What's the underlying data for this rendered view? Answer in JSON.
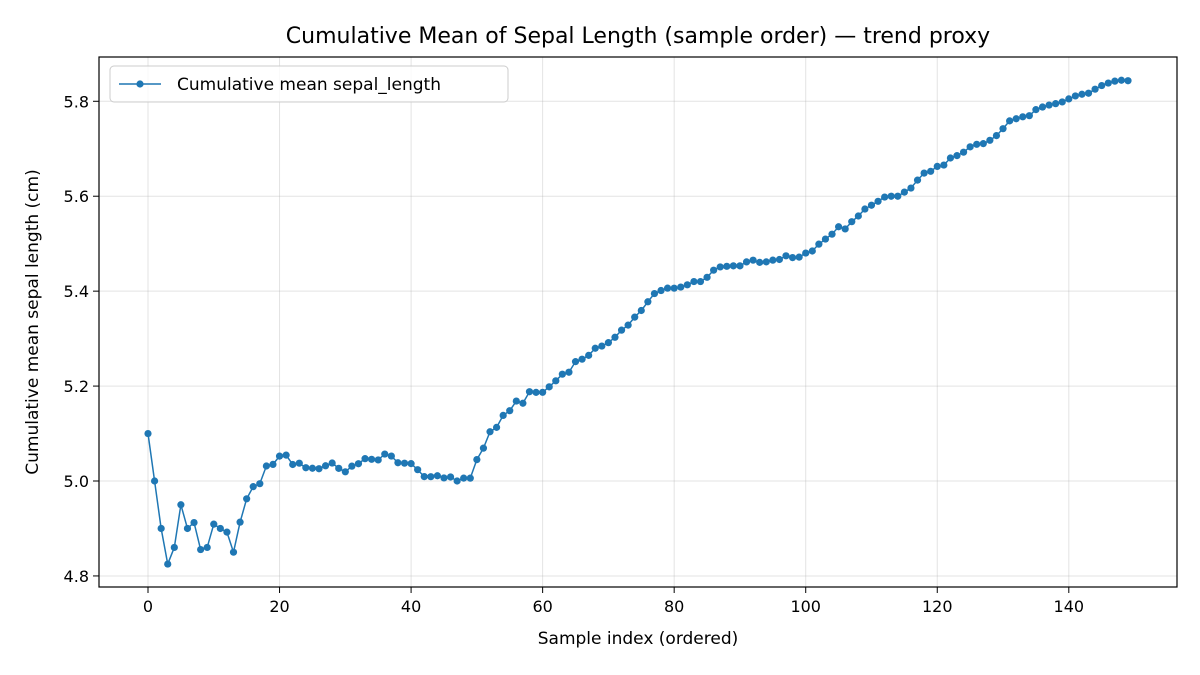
{
  "chart_data": {
    "type": "line",
    "title": "Cumulative Mean of Sepal Length (sample order) — trend proxy",
    "xlabel": "Sample index (ordered)",
    "ylabel": "Cumulative mean sepal length (cm)",
    "xlim": [
      -7.45,
      156.45
    ],
    "ylim": [
      4.7767,
      5.8933
    ],
    "xticks": [
      0,
      20,
      40,
      60,
      80,
      100,
      120,
      140
    ],
    "yticks": [
      4.8,
      5.0,
      5.2,
      5.4,
      5.6,
      5.8
    ],
    "xtick_labels": [
      "0",
      "20",
      "40",
      "60",
      "80",
      "100",
      "120",
      "140"
    ],
    "ytick_labels": [
      "4.8",
      "5.0",
      "5.2",
      "5.4",
      "5.6",
      "5.8"
    ],
    "grid": true,
    "legend_position": "upper left",
    "series": [
      {
        "name": "Cumulative mean sepal_length",
        "color": "#1f77b4",
        "marker": "circle",
        "x": [
          0,
          1,
          2,
          3,
          4,
          5,
          6,
          7,
          8,
          9,
          10,
          11,
          12,
          13,
          14,
          15,
          16,
          17,
          18,
          19,
          20,
          21,
          22,
          23,
          24,
          25,
          26,
          27,
          28,
          29,
          30,
          31,
          32,
          33,
          34,
          35,
          36,
          37,
          38,
          39,
          40,
          41,
          42,
          43,
          44,
          45,
          46,
          47,
          48,
          49,
          50,
          51,
          52,
          53,
          54,
          55,
          56,
          57,
          58,
          59,
          60,
          61,
          62,
          63,
          64,
          65,
          66,
          67,
          68,
          69,
          70,
          71,
          72,
          73,
          74,
          75,
          76,
          77,
          78,
          79,
          80,
          81,
          82,
          83,
          84,
          85,
          86,
          87,
          88,
          89,
          90,
          91,
          92,
          93,
          94,
          95,
          96,
          97,
          98,
          99,
          100,
          101,
          102,
          103,
          104,
          105,
          106,
          107,
          108,
          109,
          110,
          111,
          112,
          113,
          114,
          115,
          116,
          117,
          118,
          119,
          120,
          121,
          122,
          123,
          124,
          125,
          126,
          127,
          128,
          129,
          130,
          131,
          132,
          133,
          134,
          135,
          136,
          137,
          138,
          139,
          140,
          141,
          142,
          143,
          144,
          145,
          146,
          147,
          148,
          149
        ],
        "y": [
          5.1,
          5.0,
          4.9,
          4.825,
          4.86,
          4.95,
          4.9,
          4.9125,
          4.8556,
          4.86,
          4.9091,
          4.9,
          4.8923,
          4.85,
          4.9133,
          4.9625,
          4.9882,
          4.9944,
          5.0316,
          5.035,
          5.0524,
          5.0545,
          5.0348,
          5.0375,
          5.028,
          5.0269,
          5.0259,
          5.0321,
          5.0379,
          5.0267,
          5.0194,
          5.0313,
          5.0364,
          5.0471,
          5.0457,
          5.0444,
          5.0568,
          5.0526,
          5.0385,
          5.0375,
          5.0366,
          5.0238,
          5.0093,
          5.0091,
          5.0111,
          5.0065,
          5.0085,
          5.0,
          5.0061,
          5.006,
          5.0451,
          5.0692,
          5.1038,
          5.113,
          5.1382,
          5.1482,
          5.1684,
          5.1638,
          5.1881,
          5.1867,
          5.1869,
          5.1984,
          5.2111,
          5.225,
          5.2292,
          5.2515,
          5.2567,
          5.2647,
          5.2797,
          5.2843,
          5.2915,
          5.3028,
          5.3178,
          5.3284,
          5.3453,
          5.3592,
          5.3776,
          5.3949,
          5.4013,
          5.4063,
          5.4062,
          5.4086,
          5.4133,
          5.4202,
          5.4202,
          5.4291,
          5.4442,
          5.451,
          5.4523,
          5.4533,
          5.4533,
          5.4616,
          5.4652,
          5.4606,
          5.4617,
          5.4653,
          5.4667,
          5.4745,
          5.4707,
          5.4717,
          5.4802,
          5.4846,
          5.499,
          5.5097,
          5.52,
          5.5357,
          5.5311,
          5.5463,
          5.5583,
          5.573,
          5.581,
          5.5893,
          5.5982,
          5.6,
          5.6,
          5.6087,
          5.6172,
          5.6339,
          5.6487,
          5.6525,
          5.6628,
          5.6656,
          5.6805,
          5.6855,
          5.6928,
          5.704,
          5.7094,
          5.7108,
          5.7178,
          5.7277,
          5.7423,
          5.7587,
          5.7632,
          5.7673,
          5.7696,
          5.7824,
          5.7879,
          5.792,
          5.795,
          5.7986,
          5.805,
          5.8113,
          5.8148,
          5.817,
          5.8255,
          5.8331,
          5.8384,
          5.8424,
          5.8443,
          5.8433
        ]
      }
    ]
  }
}
